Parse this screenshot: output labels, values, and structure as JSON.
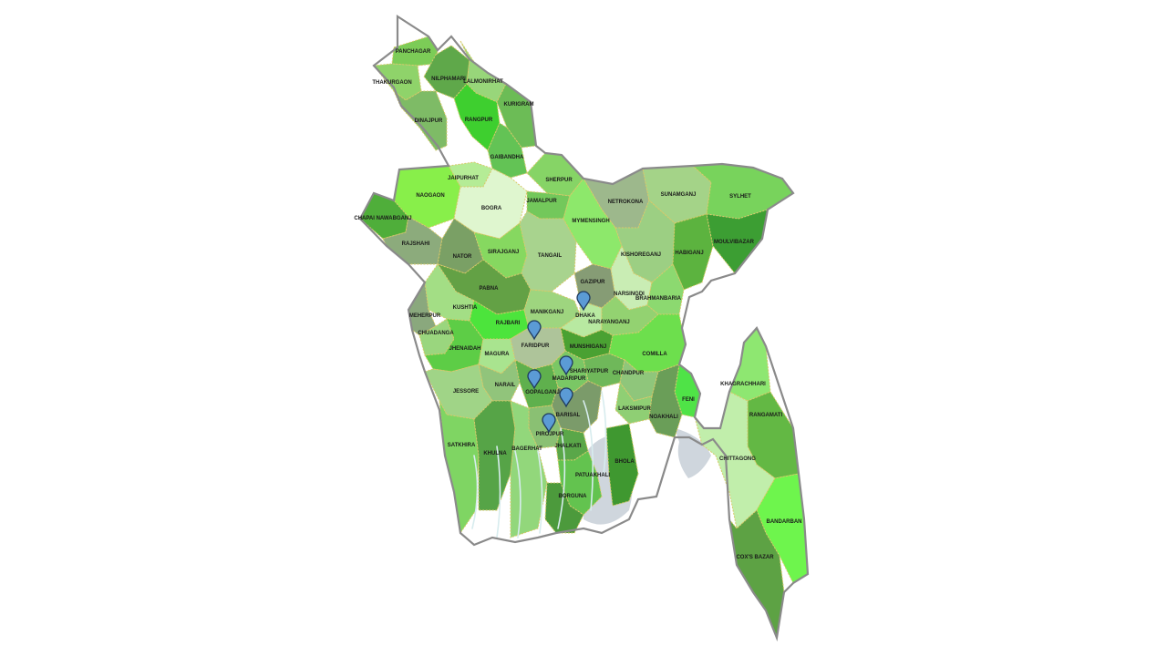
{
  "colors": {
    "background": "#ffffff",
    "outline": "#8a8a8a",
    "boundary": "#d9c96a",
    "marker": "#5b9bd5",
    "marker_stroke": "#1e3a5f",
    "label": "#1a1a1a"
  },
  "districts": [
    {
      "id": "panchagar",
      "name": "PANCHAGAR",
      "fill": "#7ccc57"
    },
    {
      "id": "thakurgaon",
      "name": "THAKURGAON",
      "fill": "#8fd36a"
    },
    {
      "id": "nilphamari",
      "name": "NILPHAMARI",
      "fill": "#5fa84a"
    },
    {
      "id": "lalmonirhat",
      "name": "LALMONIRHAT",
      "fill": "#98d67a"
    },
    {
      "id": "kurigram",
      "name": "KURIGRAM",
      "fill": "#6cbc56"
    },
    {
      "id": "dinajpur",
      "name": "DINAJPUR",
      "fill": "#7ebb66"
    },
    {
      "id": "rangpur",
      "name": "RANGPUR",
      "fill": "#3ecf2f"
    },
    {
      "id": "gaibandha",
      "name": "GAIBANDHA",
      "fill": "#63c355"
    },
    {
      "id": "jaipurhat",
      "name": "JAIPURHAT",
      "fill": "#b5ec96"
    },
    {
      "id": "naogaon",
      "name": "NAOGAON",
      "fill": "#88ef4a"
    },
    {
      "id": "bogra",
      "name": "BOGRA",
      "fill": "#dff6cf"
    },
    {
      "id": "sherpur",
      "name": "SHERPUR",
      "fill": "#86d466"
    },
    {
      "id": "jamalpur",
      "name": "JAMALPUR",
      "fill": "#73c85b"
    },
    {
      "id": "netrokona",
      "name": "NETROKONA",
      "fill": "#9db88c"
    },
    {
      "id": "sunamganj",
      "name": "SUNAMGANJ",
      "fill": "#a4d388"
    },
    {
      "id": "sylhet",
      "name": "SYLHET",
      "fill": "#78d35c"
    },
    {
      "id": "chapai-nawabganj",
      "name": "CHAPAI NAWABGANJ",
      "fill": "#4fae3a"
    },
    {
      "id": "rajshahi",
      "name": "RAJSHAHI",
      "fill": "#8cab7c"
    },
    {
      "id": "nator",
      "name": "NATOR",
      "fill": "#7aa065"
    },
    {
      "id": "sirajganj",
      "name": "SIRAJGANJ",
      "fill": "#86d860"
    },
    {
      "id": "tangail",
      "name": "TANGAIL",
      "fill": "#a8d38e"
    },
    {
      "id": "mymensingh",
      "name": "MYMENSINGH",
      "fill": "#8de86b"
    },
    {
      "id": "kishoreganj",
      "name": "KISHOREGANJ",
      "fill": "#9ccf83"
    },
    {
      "id": "habiganj",
      "name": "HABIGANJ",
      "fill": "#5cb33f"
    },
    {
      "id": "moulvibazar",
      "name": "MOULVIBAZAR",
      "fill": "#3c9e33"
    },
    {
      "id": "pabna",
      "name": "PABNA",
      "fill": "#63a145"
    },
    {
      "id": "gazipur",
      "name": "GAZIPUR",
      "fill": "#869c75"
    },
    {
      "id": "narsingdi",
      "name": "NARSINGDI",
      "fill": "#c9edb4"
    },
    {
      "id": "brahmanbaria",
      "name": "BRAHMANBARIA",
      "fill": "#8cd970"
    },
    {
      "id": "kushtia",
      "name": "KUSHTIA",
      "fill": "#a3de85"
    },
    {
      "id": "meherpur",
      "name": "MEHERPUR",
      "fill": "#8aa87d"
    },
    {
      "id": "chuadanga",
      "name": "CHUADANGA",
      "fill": "#9ad67e"
    },
    {
      "id": "rajbari",
      "name": "RAJBARI",
      "fill": "#4ce43c"
    },
    {
      "id": "manikganj",
      "name": "MANIKGANJ",
      "fill": "#9ed57f"
    },
    {
      "id": "dhaka",
      "name": "DHAKA",
      "fill": "#b8e9a1"
    },
    {
      "id": "narayanganj",
      "name": "NARAYANGANJ",
      "fill": "#93d271"
    },
    {
      "id": "jhenaidah",
      "name": "JHENAIDAH",
      "fill": "#5dcd46"
    },
    {
      "id": "magura",
      "name": "MAGURA",
      "fill": "#a9e48f"
    },
    {
      "id": "faridpur",
      "name": "FARIDPUR",
      "fill": "#aec49a"
    },
    {
      "id": "munshiganj",
      "name": "MUNSHIGANJ",
      "fill": "#4aa132"
    },
    {
      "id": "comilla",
      "name": "COMILLA",
      "fill": "#6ddf4d"
    },
    {
      "id": "shariyatpur",
      "name": "SHARIYATPUR",
      "fill": "#6fb85a"
    },
    {
      "id": "madaripur",
      "name": "MADARIPUR",
      "fill": "#7ac765"
    },
    {
      "id": "chandpur",
      "name": "CHANDPUR",
      "fill": "#8fc67b"
    },
    {
      "id": "khagrachhari",
      "name": "KHAGRACHHARI",
      "fill": "#8ee771"
    },
    {
      "id": "narail",
      "name": "NARAIL",
      "fill": "#91c47b"
    },
    {
      "id": "gopalganj",
      "name": "GOPALGANJ",
      "fill": "#5fb04d"
    },
    {
      "id": "jessore",
      "name": "JESSORE",
      "fill": "#a0d487"
    },
    {
      "id": "feni",
      "name": "FENI",
      "fill": "#4fe347"
    },
    {
      "id": "laksmipur",
      "name": "LAKSMIPUR",
      "fill": "#8fcf74"
    },
    {
      "id": "noakhali",
      "name": "NOAKHALI",
      "fill": "#6a9e58"
    },
    {
      "id": "rangamati",
      "name": "RANGAMATI",
      "fill": "#63b844"
    },
    {
      "id": "barisal",
      "name": "BARISAL",
      "fill": "#7b9b6a"
    },
    {
      "id": "pirojpur",
      "name": "PIROJPUR",
      "fill": "#8ac073"
    },
    {
      "id": "satkhira",
      "name": "SATKHIRA",
      "fill": "#7fd563"
    },
    {
      "id": "khulna",
      "name": "KHULNA",
      "fill": "#56a447"
    },
    {
      "id": "bagerhat",
      "name": "BAGERHAT",
      "fill": "#92d77b"
    },
    {
      "id": "jhalkati",
      "name": "JHALKATI",
      "fill": "#5aa749"
    },
    {
      "id": "bhola",
      "name": "BHOLA",
      "fill": "#3f9830"
    },
    {
      "id": "chittagong",
      "name": "CHITTAGONG",
      "fill": "#c1eeab"
    },
    {
      "id": "patuakhali",
      "name": "PATUAKHALI",
      "fill": "#63c34f"
    },
    {
      "id": "borguna",
      "name": "BORGUNA",
      "fill": "#4c9a3c"
    },
    {
      "id": "bandarban",
      "name": "BANDARBAN",
      "fill": "#6ef54d"
    },
    {
      "id": "coxs-bazar",
      "name": "COX'S BAZAR",
      "fill": "#5da244"
    }
  ],
  "markers": [
    {
      "id": "dhaka",
      "icon": "map-pin-icon"
    },
    {
      "id": "faridpur",
      "icon": "map-pin-icon"
    },
    {
      "id": "madaripur",
      "icon": "map-pin-icon"
    },
    {
      "id": "gopalganj",
      "icon": "map-pin-icon"
    },
    {
      "id": "barisal",
      "icon": "map-pin-icon"
    },
    {
      "id": "pirojpur",
      "icon": "map-pin-icon"
    }
  ]
}
